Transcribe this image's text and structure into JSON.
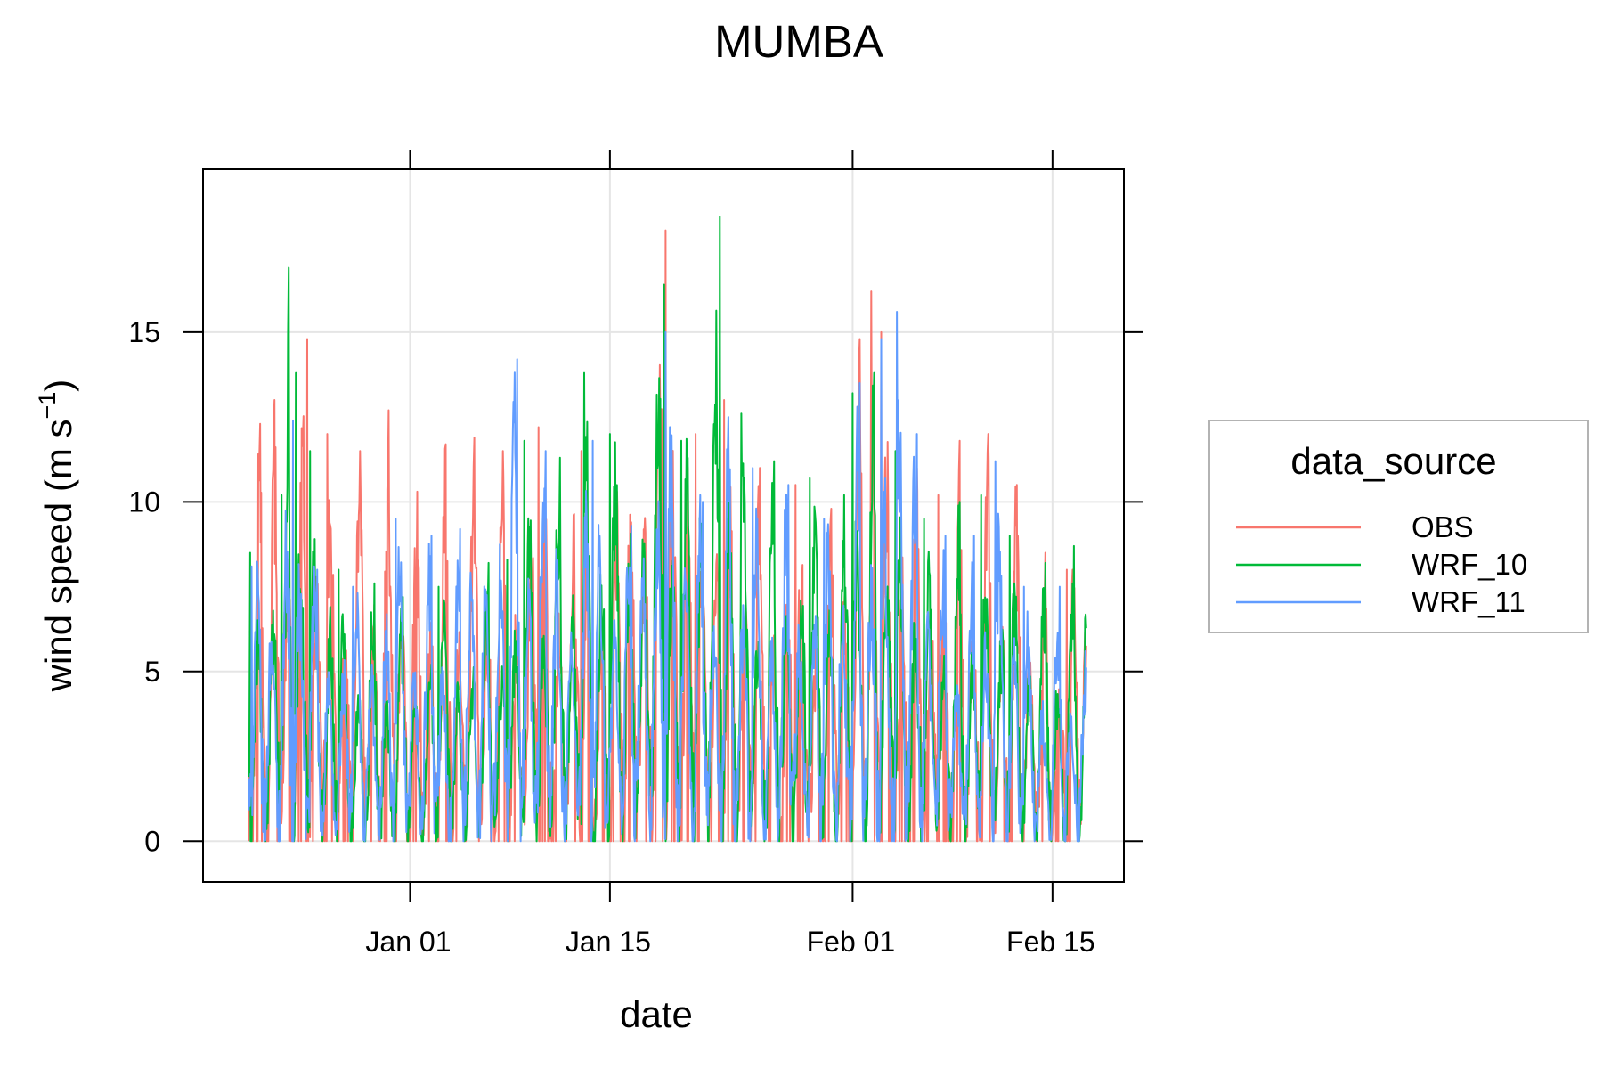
{
  "chart_data": {
    "type": "line",
    "title": "MUMBA",
    "xlabel": "date",
    "ylabel_main": "wind speed (m s",
    "ylabel_sup": "−1",
    "ylabel_close": ")",
    "x_tick_labels": [
      "Jan 01",
      "Jan 15",
      "Feb 01",
      "Feb 15"
    ],
    "x_ticks_days": [
      0,
      14,
      31,
      45
    ],
    "x_start": "Dec 22",
    "x_end": "Feb 16",
    "xlim_days": [
      -14.5,
      50
    ],
    "y_ticks": [
      0,
      5,
      10,
      15
    ],
    "ylim": [
      -1.2,
      19.8
    ],
    "grid": true,
    "legend_position": "right",
    "legend_title": "data_source",
    "series": [
      {
        "name": "OBS",
        "color": "#F8766D",
        "peaks": [
          [
            -10.5,
            12.3
          ],
          [
            -9.5,
            13.0
          ],
          [
            -7.2,
            14.8
          ],
          [
            -5.8,
            12.0
          ],
          [
            -3.5,
            11.5
          ],
          [
            -1.5,
            12.7
          ],
          [
            0.5,
            10.3
          ],
          [
            2.5,
            11.7
          ],
          [
            4.5,
            11.9
          ],
          [
            6.5,
            11.5
          ],
          [
            9.0,
            12.2
          ],
          [
            12.0,
            11.5
          ],
          [
            14.5,
            10.3
          ],
          [
            17.9,
            18.0
          ],
          [
            20.0,
            12.0
          ],
          [
            22.0,
            13.0
          ],
          [
            24.5,
            11.0
          ],
          [
            27.0,
            10.5
          ],
          [
            29.5,
            9.8
          ],
          [
            31.5,
            14.8
          ],
          [
            32.3,
            16.2
          ],
          [
            33.0,
            15.0
          ],
          [
            35.5,
            11.0
          ],
          [
            37.0,
            10.2
          ],
          [
            38.5,
            11.8
          ],
          [
            40.5,
            12.0
          ],
          [
            42.5,
            10.5
          ],
          [
            44.5,
            8.5
          ],
          [
            46.0,
            8.0
          ]
        ]
      },
      {
        "name": "WRF_10",
        "color": "#00BA38",
        "peaks": [
          [
            -11.2,
            8.5
          ],
          [
            -9.0,
            10.2
          ],
          [
            -8.5,
            16.9
          ],
          [
            -8.0,
            13.8
          ],
          [
            -7.0,
            11.5
          ],
          [
            -5.0,
            8.0
          ],
          [
            -2.5,
            7.6
          ],
          [
            -0.5,
            7.2
          ],
          [
            2.0,
            7.5
          ],
          [
            5.5,
            8.2
          ],
          [
            6.8,
            8.3
          ],
          [
            8.0,
            11.8
          ],
          [
            10.5,
            11.3
          ],
          [
            12.2,
            13.8
          ],
          [
            14.0,
            12.0
          ],
          [
            17.8,
            16.4
          ],
          [
            19.0,
            11.8
          ],
          [
            21.7,
            18.4
          ],
          [
            23.2,
            12.6
          ],
          [
            25.5,
            11.2
          ],
          [
            28.0,
            10.7
          ],
          [
            31.0,
            13.2
          ],
          [
            32.5,
            13.8
          ],
          [
            34.0,
            11.5
          ],
          [
            36.0,
            9.5
          ],
          [
            38.5,
            10.0
          ],
          [
            40.0,
            10.2
          ],
          [
            42.0,
            9.0
          ],
          [
            44.5,
            8.2
          ],
          [
            46.5,
            8.7
          ],
          [
            47.4,
            7.1
          ]
        ]
      },
      {
        "name": "WRF_11",
        "color": "#619CFF",
        "peaks": [
          [
            -11.1,
            8.1
          ],
          [
            -8.2,
            12.4
          ],
          [
            -6.5,
            8.0
          ],
          [
            -4.0,
            7.5
          ],
          [
            -1.0,
            9.5
          ],
          [
            1.5,
            9.0
          ],
          [
            3.5,
            9.2
          ],
          [
            7.5,
            14.2
          ],
          [
            9.5,
            11.5
          ],
          [
            12.8,
            11.8
          ],
          [
            15.5,
            9.3
          ],
          [
            17.9,
            15.0
          ],
          [
            20.5,
            10.0
          ],
          [
            22.3,
            12.5
          ],
          [
            24.0,
            11.0
          ],
          [
            26.5,
            10.5
          ],
          [
            29.0,
            9.5
          ],
          [
            31.5,
            13.5
          ],
          [
            33.0,
            14.8
          ],
          [
            34.1,
            15.6
          ],
          [
            35.5,
            12.0
          ],
          [
            37.5,
            9.0
          ],
          [
            39.5,
            9.0
          ],
          [
            41.0,
            11.2
          ],
          [
            43.0,
            7.5
          ],
          [
            45.5,
            7.5
          ],
          [
            47.3,
            5.6
          ]
        ]
      }
    ]
  }
}
